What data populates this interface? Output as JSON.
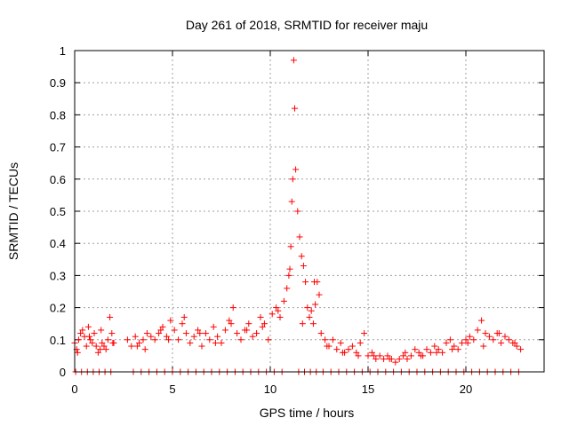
{
  "chart_data": {
    "type": "scatter",
    "title": "Day 261 of 2018, SRMTID for receiver maju",
    "xlabel": "GPS time / hours",
    "ylabel": "SRMTID / TECUs",
    "xlim": [
      0,
      24
    ],
    "ylim": [
      0,
      1
    ],
    "x_ticks": [
      "0",
      "5",
      "10",
      "15",
      "20"
    ],
    "y_ticks": [
      "0",
      "0.1",
      "0.2",
      "0.3",
      "0.4",
      "0.5",
      "0.6",
      "0.7",
      "0.8",
      "0.9",
      "1"
    ],
    "x_tick_values": [
      0,
      5,
      10,
      15,
      20
    ],
    "y_tick_values": [
      0,
      0.1,
      0.2,
      0.3,
      0.4,
      0.5,
      0.6,
      0.7,
      0.8,
      0.9,
      1
    ],
    "grid": true,
    "marker": "+",
    "color": "#ff0000",
    "series": [
      {
        "name": "maju",
        "x": [
          0.0,
          0.1,
          0.2,
          0.3,
          0.4,
          0.5,
          0.6,
          0.7,
          0.8,
          0.9,
          1.0,
          1.1,
          1.2,
          1.3,
          1.4,
          1.5,
          1.6,
          1.7,
          1.8,
          1.9,
          2.0,
          2.7,
          2.9,
          3.1,
          3.3,
          3.5,
          3.7,
          3.9,
          4.1,
          4.3,
          4.5,
          4.7,
          4.9,
          5.1,
          5.3,
          5.5,
          5.7,
          5.9,
          6.1,
          6.3,
          6.5,
          6.7,
          6.9,
          7.1,
          7.3,
          7.5,
          7.7,
          7.9,
          8.1,
          8.3,
          8.5,
          8.7,
          8.9,
          9.1,
          9.3,
          9.5,
          9.7,
          9.9,
          10.1,
          10.3,
          10.5,
          10.7,
          10.85,
          10.95,
          11.0,
          11.05,
          11.1,
          11.15,
          11.2,
          11.25,
          11.3,
          11.4,
          11.5,
          11.6,
          11.7,
          11.8,
          11.9,
          12.0,
          12.1,
          12.2,
          12.3,
          12.4,
          12.5,
          12.6,
          12.8,
          13.0,
          13.2,
          13.4,
          13.6,
          13.8,
          14.0,
          14.2,
          14.4,
          14.6,
          14.8,
          15.0,
          15.2,
          15.4,
          15.6,
          15.8,
          16.0,
          16.2,
          16.4,
          16.6,
          16.8,
          17.0,
          17.2,
          17.4,
          17.6,
          17.8,
          18.0,
          18.2,
          18.4,
          18.6,
          18.8,
          19.0,
          19.2,
          19.4,
          19.6,
          19.8,
          20.0,
          20.2,
          20.4,
          20.6,
          20.8,
          21.0,
          21.2,
          21.4,
          21.6,
          21.8,
          22.0,
          22.2,
          22.4,
          22.6,
          22.8,
          0.05,
          0.35,
          0.65,
          0.95,
          1.25,
          1.55,
          1.85,
          3.0,
          3.4,
          3.8,
          4.2,
          4.6,
          5.0,
          5.4,
          5.8,
          6.2,
          6.6,
          7.0,
          7.4,
          7.8,
          8.2,
          8.6,
          9.0,
          9.4,
          9.8,
          10.2,
          10.6,
          11.45,
          11.75,
          12.05,
          12.35,
          12.7,
          13.1,
          13.5,
          13.9,
          14.3,
          14.7,
          15.1,
          15.5,
          15.9,
          16.3,
          16.7,
          17.1,
          17.5,
          17.9,
          18.3,
          18.7,
          19.1,
          19.5,
          19.9,
          20.3,
          20.7,
          21.1,
          21.5,
          21.9,
          22.3,
          22.7,
          0.15,
          0.75,
          1.35,
          1.95,
          3.2,
          3.6,
          4.4,
          4.8,
          5.6,
          6.4,
          7.2,
          8.0,
          8.8,
          9.6,
          10.4,
          11.65,
          12.25,
          12.9,
          13.7,
          14.5,
          15.3,
          16.1,
          16.9,
          17.7,
          18.5,
          19.3,
          20.1,
          20.9,
          21.7,
          22.5
        ],
        "y": [
          0.09,
          0.07,
          0.1,
          0.12,
          0.13,
          0.11,
          0.08,
          0.14,
          0.1,
          0.09,
          0.12,
          0.08,
          0.06,
          0.07,
          0.09,
          0.08,
          0.07,
          0.1,
          0.17,
          0.12,
          0.09,
          0.1,
          0.08,
          0.11,
          0.09,
          0.1,
          0.12,
          0.11,
          0.1,
          0.12,
          0.14,
          0.11,
          0.16,
          0.13,
          0.1,
          0.15,
          0.12,
          0.09,
          0.11,
          0.13,
          0.08,
          0.12,
          0.1,
          0.14,
          0.11,
          0.09,
          0.13,
          0.16,
          0.2,
          0.12,
          0.1,
          0.13,
          0.15,
          0.11,
          0.12,
          0.17,
          0.15,
          0.1,
          0.18,
          0.2,
          0.17,
          0.22,
          0.26,
          0.3,
          0.32,
          0.39,
          0.53,
          0.6,
          0.97,
          0.82,
          0.63,
          0.5,
          0.42,
          0.36,
          0.33,
          0.28,
          0.2,
          0.17,
          0.19,
          0.15,
          0.21,
          0.28,
          0.24,
          0.12,
          0.1,
          0.08,
          0.1,
          0.07,
          0.09,
          0.06,
          0.07,
          0.08,
          0.06,
          0.09,
          0.12,
          0.05,
          0.06,
          0.04,
          0.05,
          0.04,
          0.05,
          0.04,
          0.03,
          0.04,
          0.05,
          0.04,
          0.05,
          0.07,
          0.06,
          0.05,
          0.07,
          0.06,
          0.08,
          0.07,
          0.06,
          0.09,
          0.1,
          0.08,
          0.07,
          0.09,
          0.1,
          0.11,
          0.1,
          0.13,
          0.16,
          0.12,
          0.11,
          0.1,
          0.12,
          0.09,
          0.11,
          0.1,
          0.09,
          0.08,
          0.07,
          0.0,
          0.0,
          0.0,
          0.0,
          0.0,
          0.0,
          0.0,
          0.0,
          0.0,
          0.0,
          0.0,
          0.0,
          0.0,
          0.0,
          0.0,
          0.0,
          0.0,
          0.0,
          0.0,
          0.0,
          0.0,
          0.0,
          0.0,
          0.0,
          0.0,
          0.0,
          0.0,
          0.0,
          0.0,
          0.0,
          0.0,
          0.0,
          0.0,
          0.0,
          0.0,
          0.0,
          0.0,
          0.0,
          0.0,
          0.0,
          0.0,
          0.0,
          0.0,
          0.0,
          0.0,
          0.0,
          0.0,
          0.0,
          0.0,
          0.0,
          0.0,
          0.0,
          0.0,
          0.0,
          0.0,
          0.0,
          0.0,
          0.06,
          0.11,
          0.13,
          0.09,
          0.08,
          0.07,
          0.13,
          0.1,
          0.17,
          0.12,
          0.09,
          0.15,
          0.13,
          0.14,
          0.19,
          0.15,
          0.28,
          0.08,
          0.06,
          0.05,
          0.05,
          0.04,
          0.06,
          0.05,
          0.06,
          0.07,
          0.09,
          0.08,
          0.12,
          0.09
        ]
      }
    ]
  }
}
